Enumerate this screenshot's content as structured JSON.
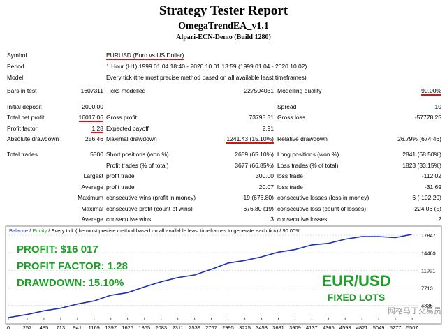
{
  "header": {
    "title": "Strategy Tester Report",
    "subtitle": "OmegaTrendEA_v1.1",
    "server": "Alpari-ECN-Demo (Build 1280)"
  },
  "table": {
    "rows": [
      [
        "Symbol",
        "EURUSD (Euro vs US Dollar)"
      ],
      [
        "Period",
        "1 Hour (H1) 1999.01.04 18:40 - 2020.10.01 13:59 (1999.01.04 - 2020.10.02)"
      ],
      [
        "Model",
        "Every tick (the most precise method based on all available least timeframes)"
      ],
      [
        "Bars in test",
        "1607311",
        "Ticks modelled",
        "227504031",
        "Modelling quality",
        "90.00%"
      ],
      [
        "Initial deposit",
        "2000.00",
        null,
        null,
        "Spread",
        "10"
      ],
      [
        "Total net profit",
        "16017.06",
        "Gross profit",
        "73795.31",
        "Gross loss",
        "-57778.25"
      ],
      [
        "Profit factor",
        "1.28",
        "Expected payoff",
        "2.91",
        null,
        null
      ],
      [
        "Absolute drawdown",
        "256.46",
        "Maximal drawdown",
        "1241.43 (15.10%)",
        "Relative drawdown",
        "26.79% (674.46)"
      ],
      [
        "Total trades",
        "5500",
        "Short positions (won %)",
        "2659 (65.10%)",
        "Long positions (won %)",
        "2841 (68.50%)"
      ],
      [
        null,
        null,
        "Profit trades (% of total)",
        "3677 (66.85%)",
        "Loss trades (% of total)",
        "1823 (33.15%)"
      ],
      [
        null,
        "Largest",
        "profit trade",
        "300.00",
        "loss trade",
        "-112.02"
      ],
      [
        null,
        "Average",
        "profit trade",
        "20.07",
        "loss trade",
        "-31.69"
      ],
      [
        null,
        "Maximum",
        "consecutive wins (profit in money)",
        "19 (676.80)",
        "consecutive losses (loss in money)",
        "6 (-102.20)"
      ],
      [
        null,
        "Maximal",
        "consecutive profit (count of wins)",
        "676.80 (19)",
        "consecutive loss (count of losses)",
        "-224.06 (5)"
      ],
      [
        null,
        "Average",
        "consecutive wins",
        "3",
        "consecutive losses",
        "2"
      ]
    ]
  },
  "chart_data": {
    "type": "line",
    "header": [
      "Balance",
      "/",
      "Equity",
      "/ Every tick (the most precise method based on all available least timeframes to generate each tick) / 90.00%"
    ],
    "x": [
      0,
      257,
      485,
      713,
      941,
      1169,
      1397,
      1625,
      1855,
      2083,
      2311,
      2539,
      2767,
      2995,
      3225,
      3453,
      3681,
      3909,
      4137,
      4365,
      4593,
      4821,
      5049,
      5277,
      5500
    ],
    "series": [
      {
        "name": "Balance",
        "color": "#1c2fb5",
        "values": [
          2000,
          2600,
          3300,
          3800,
          4600,
          5200,
          6300,
          6800,
          7900,
          8900,
          9700,
          10200,
          11300,
          12500,
          13000,
          13700,
          14600,
          15100,
          16000,
          16300,
          17100,
          17600,
          17600,
          17400,
          18017
        ]
      }
    ],
    "xlim": [
      0,
      5600
    ],
    "xticks": [
      0,
      257,
      485,
      713,
      941,
      1169,
      1397,
      1625,
      1855,
      2083,
      2311,
      2539,
      2767,
      2995,
      3225,
      3453,
      3681,
      3909,
      4137,
      4365,
      4593,
      4821,
      5049,
      5277,
      5507
    ],
    "ylim": [
      2000,
      19350
    ],
    "yticks": [
      17847,
      14469,
      11091,
      7713,
      4335
    ],
    "annotations": [
      "PROFIT: $16 017",
      "PROFIT FACTOR: 1.28",
      "DRAWDOWN: 15.10%",
      "EUR/USD",
      "FIXED LOTS"
    ],
    "watermark": "网格马丁交易员"
  }
}
